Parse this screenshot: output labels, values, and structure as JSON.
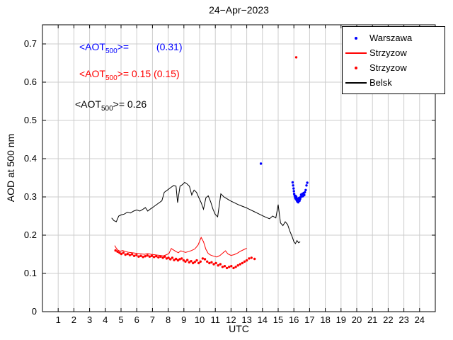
{
  "chart_data": {
    "type": "line",
    "title": "24−Apr−2023",
    "xlabel": "UTC",
    "ylabel": "AOD at 500 nm",
    "xlim": [
      0,
      25
    ],
    "ylim": [
      0,
      0.75
    ],
    "grid": true,
    "legend_position": "top-right",
    "xticks": [
      1,
      2,
      3,
      4,
      5,
      6,
      7,
      8,
      9,
      10,
      11,
      12,
      13,
      14,
      15,
      16,
      17,
      18,
      19,
      20,
      21,
      22,
      23,
      24
    ],
    "xtick_labels": [
      "1",
      "2",
      "3",
      "4",
      "5",
      "6",
      "7",
      "8",
      "9",
      "10",
      "11",
      "12",
      "13",
      "14",
      "15",
      "16",
      "17",
      "18",
      "19",
      "20",
      "21",
      "22",
      "23",
      "24"
    ],
    "yticks": [
      0,
      0.1,
      0.2,
      0.3,
      0.4,
      0.5,
      0.6,
      0.7
    ],
    "ytick_labels": [
      "0",
      "0.1",
      "0.2",
      "0.3",
      "0.4",
      "0.5",
      "0.6",
      "0.7"
    ],
    "colors": {
      "grid": "#cccccc",
      "axis": "#000000",
      "warszawa": "#0000ff",
      "strzyzow": "#ff0000",
      "belsk": "#000000"
    },
    "legend": [
      {
        "label": "Warszawa",
        "marker": "dot",
        "color": "#0000ff"
      },
      {
        "label": "Strzyzow",
        "marker": "line",
        "color": "#ff0000"
      },
      {
        "label": "Strzyzow",
        "marker": "dot",
        "color": "#ff0000"
      },
      {
        "label": "Belsk",
        "marker": "line",
        "color": "#000000"
      }
    ],
    "annotations": [
      {
        "prefix": "<AOT",
        "sub": "500",
        "rest": ">=          (0.31)",
        "color": "#0000ff"
      },
      {
        "prefix": "<AOT",
        "sub": "500",
        "rest": ">= 0.15 (0.15)",
        "color": "#ff0000"
      },
      {
        "prefix": "<AOT",
        "sub": "500",
        "rest": ">= 0.26",
        "color": "#000000"
      }
    ],
    "series": [
      {
        "name": "Belsk",
        "type": "line",
        "color": "#000000",
        "x": [
          4.4,
          4.55,
          4.7,
          4.85,
          5.0,
          5.2,
          5.4,
          5.6,
          5.8,
          6.0,
          6.2,
          6.4,
          6.55,
          6.7,
          6.85,
          7.0,
          7.2,
          7.4,
          7.6,
          7.75,
          7.95,
          8.15,
          8.35,
          8.5,
          8.6,
          8.75,
          8.9,
          9.05,
          9.2,
          9.35,
          9.5,
          9.65,
          9.8,
          9.95,
          10.1,
          10.25,
          10.4,
          10.55,
          10.7,
          10.85,
          11.0,
          11.15,
          11.35,
          11.55,
          11.75,
          11.95,
          12.2,
          12.45,
          12.7,
          12.95,
          13.2,
          13.45,
          13.7,
          13.95,
          14.2,
          14.45,
          14.65,
          14.85,
          15.0,
          15.15,
          15.3,
          15.45,
          15.6,
          15.75,
          15.9,
          16.0,
          16.1,
          16.2,
          16.3,
          16.4
        ],
        "y": [
          0.245,
          0.238,
          0.235,
          0.25,
          0.253,
          0.255,
          0.26,
          0.258,
          0.263,
          0.266,
          0.263,
          0.268,
          0.272,
          0.263,
          0.268,
          0.272,
          0.278,
          0.284,
          0.29,
          0.312,
          0.318,
          0.324,
          0.33,
          0.328,
          0.285,
          0.328,
          0.332,
          0.338,
          0.334,
          0.328,
          0.305,
          0.318,
          0.312,
          0.298,
          0.285,
          0.268,
          0.298,
          0.303,
          0.288,
          0.268,
          0.254,
          0.248,
          0.308,
          0.3,
          0.295,
          0.29,
          0.285,
          0.28,
          0.276,
          0.272,
          0.267,
          0.262,
          0.257,
          0.252,
          0.247,
          0.243,
          0.25,
          0.245,
          0.28,
          0.232,
          0.225,
          0.235,
          0.228,
          0.21,
          0.195,
          0.183,
          0.178,
          0.186,
          0.18,
          0.183
        ]
      },
      {
        "name": "Strzyzow",
        "type": "line",
        "color": "#ff0000",
        "x": [
          4.6,
          4.7,
          4.8,
          4.95,
          5.1,
          5.3,
          5.5,
          5.7,
          5.9,
          6.1,
          6.3,
          6.5,
          6.7,
          6.9,
          7.1,
          7.3,
          7.5,
          7.7,
          7.9,
          8.05,
          8.2,
          8.35,
          8.5,
          8.65,
          8.8,
          8.95,
          9.1,
          9.3,
          9.5,
          9.7,
          9.9,
          10.1,
          10.25,
          10.4,
          10.55,
          10.7,
          10.9,
          11.1,
          11.3,
          11.5,
          11.65,
          11.8,
          12.0,
          12.2,
          12.4,
          12.6,
          12.8,
          13.0
        ],
        "y": [
          0.173,
          0.166,
          0.161,
          0.158,
          0.16,
          0.157,
          0.155,
          0.154,
          0.153,
          0.152,
          0.151,
          0.15,
          0.152,
          0.15,
          0.149,
          0.148,
          0.147,
          0.146,
          0.149,
          0.152,
          0.165,
          0.161,
          0.157,
          0.154,
          0.159,
          0.157,
          0.155,
          0.157,
          0.16,
          0.164,
          0.174,
          0.194,
          0.183,
          0.163,
          0.152,
          0.148,
          0.145,
          0.143,
          0.147,
          0.154,
          0.159,
          0.151,
          0.147,
          0.149,
          0.153,
          0.158,
          0.162,
          0.166
        ]
      },
      {
        "name": "Strzyzow",
        "type": "scatter",
        "color": "#ff0000",
        "marker_size": 1.7,
        "x": [
          4.65,
          4.78,
          4.9,
          5.02,
          5.15,
          5.28,
          5.42,
          5.56,
          5.7,
          5.84,
          5.98,
          6.12,
          6.26,
          6.4,
          6.54,
          6.68,
          6.82,
          6.96,
          7.1,
          7.24,
          7.38,
          7.52,
          7.66,
          7.78,
          7.9,
          8.02,
          8.14,
          8.26,
          8.38,
          8.5,
          8.62,
          8.74,
          8.86,
          8.98,
          9.1,
          9.22,
          9.34,
          9.46,
          9.58,
          9.7,
          9.82,
          9.94,
          10.06,
          10.2,
          10.34,
          10.48,
          10.62,
          10.76,
          10.9,
          11.04,
          11.18,
          11.32,
          11.46,
          11.6,
          11.74,
          11.88,
          12.02,
          12.16,
          12.3,
          12.44,
          12.58,
          12.72,
          12.86,
          13.0,
          13.15,
          13.3,
          13.5,
          16.15
        ],
        "y": [
          0.16,
          0.157,
          0.154,
          0.151,
          0.154,
          0.149,
          0.151,
          0.148,
          0.15,
          0.146,
          0.148,
          0.144,
          0.146,
          0.143,
          0.145,
          0.147,
          0.144,
          0.146,
          0.143,
          0.145,
          0.142,
          0.144,
          0.141,
          0.144,
          0.139,
          0.141,
          0.137,
          0.141,
          0.135,
          0.138,
          0.134,
          0.137,
          0.139,
          0.134,
          0.131,
          0.135,
          0.129,
          0.132,
          0.127,
          0.13,
          0.134,
          0.127,
          0.131,
          0.139,
          0.137,
          0.131,
          0.127,
          0.129,
          0.124,
          0.127,
          0.121,
          0.124,
          0.117,
          0.119,
          0.114,
          0.117,
          0.119,
          0.114,
          0.117,
          0.121,
          0.124,
          0.127,
          0.131,
          0.134,
          0.139,
          0.141,
          0.138,
          0.665
        ]
      },
      {
        "name": "Warszawa",
        "type": "scatter",
        "color": "#0000ff",
        "marker_size": 1.7,
        "x": [
          13.9,
          15.92,
          15.95,
          15.98,
          16.0,
          16.02,
          16.05,
          16.08,
          16.1,
          16.12,
          16.15,
          16.18,
          16.2,
          16.22,
          16.25,
          16.28,
          16.3,
          16.33,
          16.36,
          16.4,
          16.43,
          16.46,
          16.5,
          16.54,
          16.58,
          16.62,
          16.66,
          16.7,
          16.75,
          16.8,
          16.85
        ],
        "y": [
          0.387,
          0.338,
          0.33,
          0.322,
          0.315,
          0.308,
          0.303,
          0.298,
          0.303,
          0.295,
          0.3,
          0.291,
          0.296,
          0.288,
          0.293,
          0.286,
          0.292,
          0.297,
          0.29,
          0.295,
          0.3,
          0.306,
          0.301,
          0.308,
          0.302,
          0.31,
          0.305,
          0.312,
          0.318,
          0.33,
          0.337
        ]
      }
    ]
  }
}
